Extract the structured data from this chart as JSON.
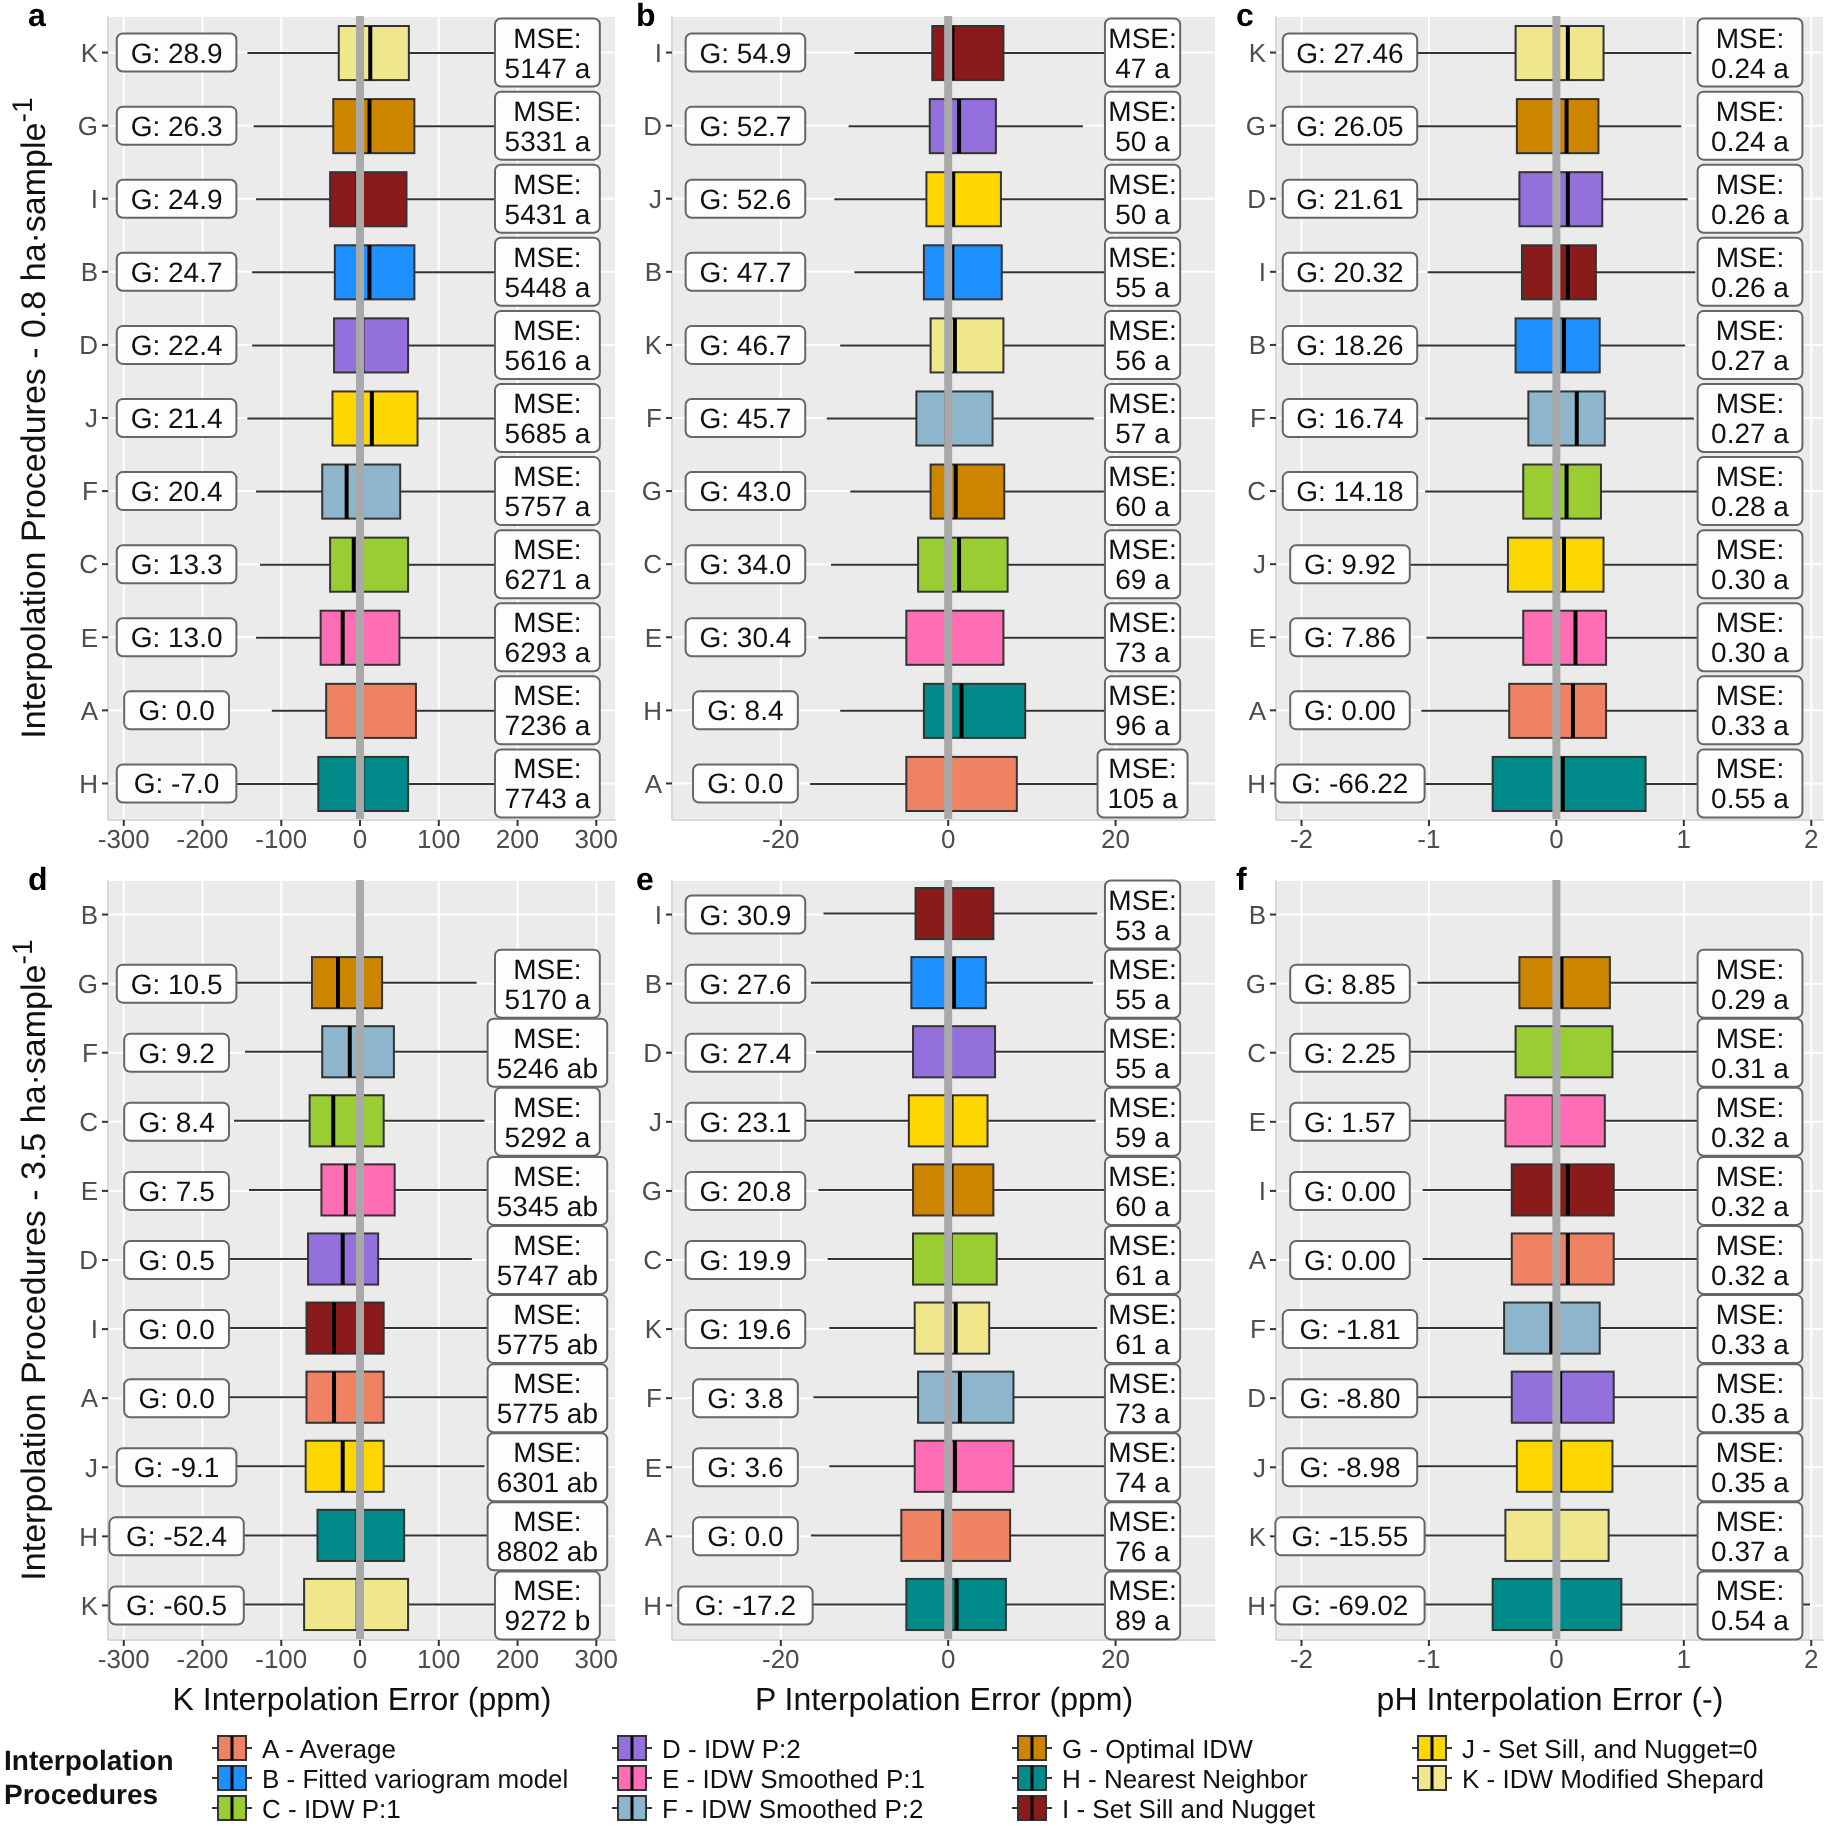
{
  "chart_data": [
    {
      "type": "box",
      "orientation": "horizontal",
      "title": "a",
      "ylabel": "Interpolation Procedures -  0.8 ha·sample$^{-1}$",
      "categories": [
        "K",
        "G",
        "I",
        "B",
        "D",
        "J",
        "F",
        "C",
        "E",
        "A",
        "H"
      ],
      "colors": [
        "#f0e68c",
        "#cd8500",
        "#8b1a1a",
        "#1e90ff",
        "#9370db",
        "#ffd700",
        "#8db6cd",
        "#9acd32",
        "#ff6eb4",
        "#ee8262",
        "#008b8b"
      ],
      "boxes": [
        {
          "low": -143,
          "q1": -27,
          "median": 13,
          "q3": 62,
          "high": 175
        },
        {
          "low": -135,
          "q1": -34,
          "median": 12,
          "q3": 69,
          "high": 171
        },
        {
          "low": -132,
          "q1": -38,
          "median": -3,
          "q3": 59,
          "high": 175
        },
        {
          "low": -137,
          "q1": -32,
          "median": 12,
          "q3": 69,
          "high": 175
        },
        {
          "low": -137,
          "q1": -33,
          "median": 3,
          "q3": 61,
          "high": 175
        },
        {
          "low": -143,
          "q1": -35,
          "median": 15,
          "q3": 73,
          "high": 175
        },
        {
          "low": -132,
          "q1": -48,
          "median": -17,
          "q3": 51,
          "high": 175
        },
        {
          "low": -127,
          "q1": -38,
          "median": -8,
          "q3": 61,
          "high": 175
        },
        {
          "low": -132,
          "q1": -50,
          "median": -22,
          "q3": 50,
          "high": 175
        },
        {
          "low": -112,
          "q1": -43,
          "median": -2,
          "q3": 71,
          "high": 175
        },
        {
          "low": -171,
          "q1": -53,
          "median": 3,
          "q3": 61,
          "high": 175
        }
      ],
      "xlim": [
        -320,
        325
      ],
      "xticks": [
        -300,
        -200,
        -100,
        0,
        100,
        200,
        300
      ],
      "grid": true,
      "ref_lines": [
        {
          "axis": "x",
          "value": 0,
          "color": "#a9a9a9"
        }
      ],
      "annotations": [
        "G: 28.9",
        "G: 26.3",
        "G: 24.9",
        "G: 24.7",
        "G: 22.4",
        "G: 21.4",
        "G: 20.4",
        "G: 13.3",
        "G: 13.0",
        "G: 0.0",
        "G: -7.0",
        "MSE:\n5147 a",
        "MSE:\n5331 a",
        "MSE:\n5431 a",
        "MSE:\n5448 a",
        "MSE:\n5616 a",
        "MSE:\n5685 a",
        "MSE:\n5757 a",
        "MSE:\n6271 a",
        "MSE:\n6293 a",
        "MSE:\n7236 a",
        "MSE:\n7743 a"
      ]
    },
    {
      "type": "box",
      "orientation": "horizontal",
      "title": "b",
      "categories": [
        "I",
        "D",
        "J",
        "B",
        "K",
        "F",
        "G",
        "C",
        "E",
        "H",
        "A"
      ],
      "colors": [
        "#8b1a1a",
        "#9370db",
        "#ffd700",
        "#1e90ff",
        "#f0e68c",
        "#8db6cd",
        "#cd8500",
        "#9acd32",
        "#ff6eb4",
        "#008b8b",
        "#ee8262"
      ],
      "boxes": [
        {
          "low": -11.2,
          "q1": -1.9,
          "median": 0.5,
          "q3": 6.6,
          "high": 18.8
        },
        {
          "low": -11.9,
          "q1": -2.2,
          "median": 1.3,
          "q3": 5.7,
          "high": 16.1
        },
        {
          "low": -13.6,
          "q1": -2.6,
          "median": 0.6,
          "q3": 6.3,
          "high": 19.0
        },
        {
          "low": -11.2,
          "q1": -2.9,
          "median": 0.5,
          "q3": 6.4,
          "high": 19.3
        },
        {
          "low": -12.9,
          "q1": -2.1,
          "median": 0.8,
          "q3": 6.6,
          "high": 19.3
        },
        {
          "low": -14.5,
          "q1": -3.8,
          "median": -0.2,
          "q3": 5.3,
          "high": 17.4
        },
        {
          "low": -11.7,
          "q1": -2.1,
          "median": 0.9,
          "q3": 6.7,
          "high": 18.6
        },
        {
          "low": -14.0,
          "q1": -3.6,
          "median": 1.3,
          "q3": 7.1,
          "high": 19.3
        },
        {
          "low": -15.5,
          "q1": -5.0,
          "median": 0.0,
          "q3": 6.6,
          "high": 19.3
        },
        {
          "low": -12.9,
          "q1": -2.9,
          "median": 1.6,
          "q3": 9.2,
          "high": 19.3
        },
        {
          "low": -16.5,
          "q1": -5.0,
          "median": 0.2,
          "q3": 8.2,
          "high": 19.3
        }
      ],
      "xlim": [
        -33,
        32
      ],
      "xticks": [
        -20,
        0,
        20
      ],
      "grid": true,
      "ref_lines": [
        {
          "axis": "x",
          "value": 0,
          "color": "#a9a9a9"
        }
      ],
      "annotations": [
        "G: 54.9",
        "G: 52.7",
        "G: 52.6",
        "G: 47.7",
        "G: 46.7",
        "G: 45.7",
        "G: 43.0",
        "G: 34.0",
        "G: 30.4",
        "G: 8.4",
        "G: 0.0",
        "MSE:\n47 a",
        "MSE:\n50 a",
        "MSE:\n50 a",
        "MSE:\n55 a",
        "MSE:\n56 a",
        "MSE:\n57 a",
        "MSE:\n60 a",
        "MSE:\n69 a",
        "MSE:\n73 a",
        "MSE:\n96 a",
        "MSE:\n105 a"
      ]
    },
    {
      "type": "box",
      "orientation": "horizontal",
      "title": "c",
      "categories": [
        "K",
        "G",
        "D",
        "I",
        "B",
        "F",
        "C",
        "J",
        "E",
        "A",
        "H"
      ],
      "colors": [
        "#f0e68c",
        "#cd8500",
        "#9370db",
        "#8b1a1a",
        "#1e90ff",
        "#8db6cd",
        "#9acd32",
        "#ffd700",
        "#ff6eb4",
        "#ee8262",
        "#008b8b"
      ],
      "boxes": [
        {
          "low": -1.13,
          "q1": -0.32,
          "median": 0.09,
          "q3": 0.37,
          "high": 1.06
        },
        {
          "low": -1.09,
          "q1": -0.31,
          "median": 0.08,
          "q3": 0.33,
          "high": 0.98
        },
        {
          "low": -1.11,
          "q1": -0.29,
          "median": 0.09,
          "q3": 0.36,
          "high": 1.03
        },
        {
          "low": -1.01,
          "q1": -0.27,
          "median": 0.09,
          "q3": 0.31,
          "high": 1.09
        },
        {
          "low": -1.18,
          "q1": -0.32,
          "median": 0.06,
          "q3": 0.34,
          "high": 1.01
        },
        {
          "low": -1.03,
          "q1": -0.22,
          "median": 0.16,
          "q3": 0.38,
          "high": 1.08
        },
        {
          "low": -1.03,
          "q1": -0.26,
          "median": 0.08,
          "q3": 0.35,
          "high": 1.14
        },
        {
          "low": -1.23,
          "q1": -0.38,
          "median": 0.06,
          "q3": 0.37,
          "high": 1.16
        },
        {
          "low": -1.02,
          "q1": -0.26,
          "median": 0.15,
          "q3": 0.39,
          "high": 1.21
        },
        {
          "low": -1.06,
          "q1": -0.37,
          "median": 0.13,
          "q3": 0.39,
          "high": 1.28
        },
        {
          "low": -1.13,
          "q1": -0.5,
          "median": 0.05,
          "q3": 0.7,
          "high": 1.28
        }
      ],
      "xlim": [
        -2.2,
        2.1
      ],
      "xticks": [
        -2,
        -1,
        0,
        1,
        2
      ],
      "grid": true,
      "ref_lines": [
        {
          "axis": "x",
          "value": 0,
          "color": "#a9a9a9"
        }
      ],
      "annotations": [
        "G: 27.46",
        "G: 26.05",
        "G: 21.61",
        "G: 20.32",
        "G: 18.26",
        "G: 16.74",
        "G: 14.18",
        "G: 9.92",
        "G: 7.86",
        "G: 0.00",
        "G: -66.22",
        "MSE:\n0.24 a",
        "MSE:\n0.24 a",
        "MSE:\n0.26 a",
        "MSE:\n0.26 a",
        "MSE:\n0.27 a",
        "MSE:\n0.27 a",
        "MSE:\n0.28 a",
        "MSE:\n0.30 a",
        "MSE:\n0.30 a",
        "MSE:\n0.33 a",
        "MSE:\n0.55 a"
      ]
    },
    {
      "type": "box",
      "orientation": "horizontal",
      "title": "d",
      "ylabel": "Interpolation Procedures -  3.5 ha·sample$^{-1}$",
      "xlabel": "K Interpolation Error (ppm)",
      "categories": [
        "B",
        "G",
        "F",
        "C",
        "E",
        "D",
        "I",
        "A",
        "J",
        "H",
        "K"
      ],
      "colors": [
        null,
        "#cd8500",
        "#8db6cd",
        "#9acd32",
        "#ff6eb4",
        "#9370db",
        "#8b1a1a",
        "#ee8262",
        "#ffd700",
        "#008b8b",
        "#f0e68c"
      ],
      "boxes": [
        null,
        {
          "low": -175,
          "q1": -61,
          "median": -28,
          "q3": 28,
          "high": 148
        },
        {
          "low": -146,
          "q1": -48,
          "median": -13,
          "q3": 43,
          "high": 171
        },
        {
          "low": -160,
          "q1": -64,
          "median": -34,
          "q3": 30,
          "high": 158
        },
        {
          "low": -141,
          "q1": -49,
          "median": -18,
          "q3": 44,
          "high": 171
        },
        {
          "low": -179,
          "q1": -66,
          "median": -22,
          "q3": 23,
          "high": 142
        },
        {
          "low": -168,
          "q1": -68,
          "median": -33,
          "q3": 30,
          "high": 163
        },
        {
          "low": -168,
          "q1": -68,
          "median": -33,
          "q3": 30,
          "high": 163
        },
        {
          "low": -175,
          "q1": -69,
          "median": -22,
          "q3": 30,
          "high": 158
        },
        {
          "low": -162,
          "q1": -54,
          "median": -3,
          "q3": 56,
          "high": 171
        },
        {
          "low": -167,
          "q1": -71,
          "median": -3,
          "q3": 61,
          "high": 171
        }
      ],
      "xlim": [
        -320,
        325
      ],
      "xticks": [
        -300,
        -200,
        -100,
        0,
        100,
        200,
        300
      ],
      "grid": true,
      "ref_lines": [
        {
          "axis": "x",
          "value": 0,
          "color": "#a9a9a9"
        }
      ],
      "annotations": [
        "G: 10.5",
        "G: 9.2",
        "G: 8.4",
        "G: 7.5",
        "G: 0.5",
        "G: 0.0",
        "G: 0.0",
        "G: -9.1",
        "G: -52.4",
        "G: -60.5",
        "MSE:\n5170 a",
        "MSE:\n5246 ab",
        "MSE:\n5292 a",
        "MSE:\n5345 ab",
        "MSE:\n5747 ab",
        "MSE:\n5775 ab",
        "MSE:\n5775 ab",
        "MSE:\n6301 ab",
        "MSE:\n8802 ab",
        "MSE:\n9272 b"
      ]
    },
    {
      "type": "box",
      "orientation": "horizontal",
      "title": "e",
      "xlabel": "P Interpolation Error (ppm)",
      "categories": [
        "I",
        "B",
        "D",
        "J",
        "G",
        "C",
        "K",
        "F",
        "E",
        "A",
        "H"
      ],
      "colors": [
        "#8b1a1a",
        "#1e90ff",
        "#9370db",
        "#ffd700",
        "#cd8500",
        "#9acd32",
        "#f0e68c",
        "#8db6cd",
        "#ff6eb4",
        "#ee8262",
        "#008b8b"
      ],
      "boxes": [
        {
          "low": -14.9,
          "q1": -3.9,
          "median": -0.2,
          "q3": 5.4,
          "high": 17.8
        },
        {
          "low": -16.4,
          "q1": -4.4,
          "median": 0.7,
          "q3": 4.5,
          "high": 17.3
        },
        {
          "low": -15.8,
          "q1": -4.2,
          "median": 0.2,
          "q3": 5.6,
          "high": 19.0
        },
        {
          "low": -17.1,
          "q1": -4.7,
          "median": 0.4,
          "q3": 4.7,
          "high": 17.6
        },
        {
          "low": -15.5,
          "q1": -4.2,
          "median": 0.4,
          "q3": 5.4,
          "high": 18.8
        },
        {
          "low": -14.4,
          "q1": -4.2,
          "median": 0.3,
          "q3": 5.8,
          "high": 19.3
        },
        {
          "low": -14.2,
          "q1": -4.0,
          "median": 0.9,
          "q3": 4.9,
          "high": 17.8
        },
        {
          "low": -16.1,
          "q1": -3.6,
          "median": 1.4,
          "q3": 7.8,
          "high": 19.3
        },
        {
          "low": -14.2,
          "q1": -4.0,
          "median": 0.8,
          "q3": 7.8,
          "high": 19.3
        },
        {
          "low": -16.4,
          "q1": -5.6,
          "median": -0.6,
          "q3": 7.4,
          "high": 19.3
        },
        {
          "low": -17.4,
          "q1": -5.0,
          "median": 1.0,
          "q3": 6.9,
          "high": 19.3
        }
      ],
      "xlim": [
        -33,
        32
      ],
      "xticks": [
        -20,
        0,
        20
      ],
      "grid": true,
      "ref_lines": [
        {
          "axis": "x",
          "value": 0,
          "color": "#a9a9a9"
        }
      ],
      "annotations": [
        "G: 30.9",
        "G: 27.6",
        "G: 27.4",
        "G: 23.1",
        "G: 20.8",
        "G: 19.9",
        "G: 19.6",
        "G: 3.8",
        "G: 3.6",
        "G: 0.0",
        "G: -17.2",
        "MSE:\n53 a",
        "MSE:\n55 a",
        "MSE:\n55 a",
        "MSE:\n59 a",
        "MSE:\n60 a",
        "MSE:\n61 a",
        "MSE:\n61 a",
        "MSE:\n73 a",
        "MSE:\n74 a",
        "MSE:\n76 a",
        "MSE:\n89 a"
      ]
    },
    {
      "type": "box",
      "orientation": "horizontal",
      "title": "f",
      "xlabel": "pH Interpolation Error (-)",
      "categories": [
        "B",
        "G",
        "C",
        "E",
        "I",
        "A",
        "F",
        "D",
        "J",
        "K",
        "H"
      ],
      "colors": [
        null,
        "#cd8500",
        "#9acd32",
        "#ff6eb4",
        "#8b1a1a",
        "#ee8262",
        "#8db6cd",
        "#9370db",
        "#ffd700",
        "#f0e68c",
        "#008b8b"
      ],
      "boxes": [
        null,
        {
          "low": -1.09,
          "q1": -0.29,
          "median": 0.04,
          "q3": 0.42,
          "high": 1.28
        },
        {
          "low": -1.23,
          "q1": -0.32,
          "median": 0.01,
          "q3": 0.44,
          "high": 1.28
        },
        {
          "low": -1.23,
          "q1": -0.4,
          "median": -0.02,
          "q3": 0.38,
          "high": 1.18
        },
        {
          "low": -1.05,
          "q1": -0.35,
          "median": 0.09,
          "q3": 0.45,
          "high": 1.28
        },
        {
          "low": -1.05,
          "q1": -0.35,
          "median": 0.09,
          "q3": 0.45,
          "high": 1.28
        },
        {
          "low": -1.18,
          "q1": -0.41,
          "median": -0.04,
          "q3": 0.34,
          "high": 1.28
        },
        {
          "low": -1.18,
          "q1": -0.35,
          "median": 0.03,
          "q3": 0.45,
          "high": 1.28
        },
        {
          "low": -1.18,
          "q1": -0.31,
          "median": 0.03,
          "q3": 0.44,
          "high": 1.28
        },
        {
          "low": -1.13,
          "q1": -0.4,
          "median": -0.01,
          "q3": 0.41,
          "high": 1.28
        },
        {
          "low": -1.13,
          "q1": -0.5,
          "median": 0.0,
          "q3": 0.51,
          "high": 1.99
        }
      ],
      "xlim": [
        -2.2,
        2.1
      ],
      "xticks": [
        -2,
        -1,
        0,
        1,
        2
      ],
      "grid": true,
      "ref_lines": [
        {
          "axis": "x",
          "value": 0,
          "color": "#a9a9a9"
        }
      ],
      "annotations": [
        "G: 8.85",
        "G: 2.25",
        "G: 1.57",
        "G: 0.00",
        "G: 0.00",
        "G: -1.81",
        "G: -8.80",
        "G: -8.98",
        "G: -15.55",
        "G: -69.02",
        "MSE:\n0.29 a",
        "MSE:\n0.31 a",
        "MSE:\n0.32 a",
        "MSE:\n0.32 a",
        "MSE:\n0.32 a",
        "MSE:\n0.33 a",
        "MSE:\n0.35 a",
        "MSE:\n0.35 a",
        "MSE:\n0.37 a",
        "MSE:\n0.54 a"
      ]
    },
    {
      "type": "other",
      "legend_title": "Interpolation Procedures",
      "categories": [
        "A - Average",
        "B - Fitted variogram model",
        "C - IDW P:1",
        "D - IDW P:2",
        "E - IDW Smoothed P:1",
        "F - IDW Smoothed P:2",
        "G - Optimal IDW",
        "H - Nearest Neighbor",
        "I - Set Sill and Nugget",
        "J - Set Sill, and Nugget=0",
        "K - IDW Modified Shepard"
      ],
      "colors": [
        "#ee8262",
        "#1e90ff",
        "#9acd32",
        "#9370db",
        "#ff6eb4",
        "#8db6cd",
        "#cd8500",
        "#008b8b",
        "#8b1a1a",
        "#ffd700",
        "#f0e68c"
      ]
    }
  ]
}
